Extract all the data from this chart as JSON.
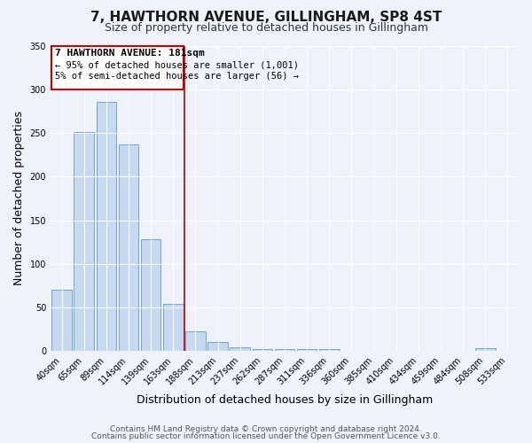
{
  "title": "7, HAWTHORN AVENUE, GILLINGHAM, SP8 4ST",
  "subtitle": "Size of property relative to detached houses in Gillingham",
  "xlabel": "Distribution of detached houses by size in Gillingham",
  "ylabel": "Number of detached properties",
  "bar_labels": [
    "40sqm",
    "65sqm",
    "89sqm",
    "114sqm",
    "139sqm",
    "163sqm",
    "188sqm",
    "213sqm",
    "237sqm",
    "262sqm",
    "287sqm",
    "311sqm",
    "336sqm",
    "360sqm",
    "385sqm",
    "410sqm",
    "434sqm",
    "459sqm",
    "484sqm",
    "508sqm",
    "533sqm"
  ],
  "bar_values": [
    70,
    251,
    286,
    237,
    128,
    54,
    23,
    11,
    4,
    2,
    2,
    2,
    2,
    0,
    0,
    0,
    0,
    0,
    0,
    3,
    0
  ],
  "bar_color": "#c6d9f0",
  "bar_edge_color": "#5b9bd5",
  "vline_color": "#c00000",
  "vline_x": 5.5,
  "annotation_title": "7 HAWTHORN AVENUE: 181sqm",
  "annotation_line1": "← 95% of detached houses are smaller (1,001)",
  "annotation_line2": "5% of semi-detached houses are larger (56) →",
  "annotation_box_color": "#c00000",
  "ylim": [
    0,
    350
  ],
  "yticks": [
    0,
    50,
    100,
    150,
    200,
    250,
    300,
    350
  ],
  "footer1": "Contains HM Land Registry data © Crown copyright and database right 2024.",
  "footer2": "Contains public sector information licensed under the Open Government Licence v3.0.",
  "bg_color": "#eef2fb",
  "plot_bg_color": "#eef2fb",
  "grid_color": "#ffffff",
  "title_fontsize": 11,
  "subtitle_fontsize": 9,
  "axis_label_fontsize": 9,
  "tick_fontsize": 7,
  "annotation_title_fontsize": 8,
  "annotation_text_fontsize": 7.5,
  "footer_fontsize": 6.5
}
